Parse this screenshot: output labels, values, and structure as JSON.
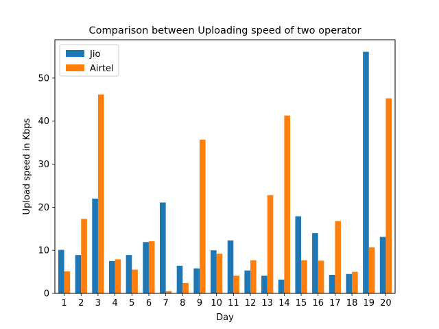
{
  "chart_data": {
    "type": "bar",
    "title": "Comparison between Uploading speed of two operator",
    "xlabel": "Day",
    "ylabel": "Upload speed in Kbps",
    "categories": [
      "1",
      "2",
      "3",
      "4",
      "5",
      "6",
      "7",
      "8",
      "9",
      "10",
      "11",
      "12",
      "13",
      "14",
      "15",
      "16",
      "17",
      "18",
      "19",
      "20"
    ],
    "series": [
      {
        "name": "Jio",
        "color": "#1f77b4",
        "values": [
          10.1,
          8.9,
          22.0,
          7.5,
          8.9,
          11.9,
          21.1,
          6.4,
          5.8,
          10.0,
          12.3,
          5.3,
          4.1,
          3.2,
          17.9,
          14.0,
          4.3,
          4.5,
          56.1,
          13.1
        ]
      },
      {
        "name": "Airtel",
        "color": "#ff7f0e",
        "values": [
          5.1,
          17.3,
          46.2,
          7.9,
          5.5,
          12.1,
          0.5,
          2.4,
          35.7,
          9.2,
          4.1,
          7.7,
          22.8,
          41.3,
          7.7,
          7.6,
          16.8,
          5.0,
          10.7,
          45.3
        ]
      }
    ],
    "ylim": [
      0,
      58.9
    ],
    "yticks": [
      0,
      10,
      20,
      30,
      40,
      50
    ],
    "legend": "top-left",
    "grid": false
  }
}
